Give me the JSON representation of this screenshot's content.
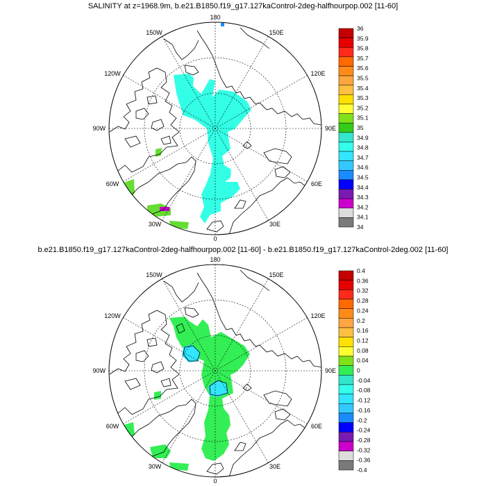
{
  "panels": [
    {
      "title": "SALINITY at z=1968.9m, b.e21.B1850.f19_g17.127kaControl-2deg-halfhourpop.002 [11-60]",
      "longitude_labels": [
        "180",
        "150W",
        "150E",
        "120W",
        "120E",
        "90W",
        "90E",
        "60W",
        "60E",
        "30W",
        "30E",
        "0"
      ],
      "colorbar": {
        "labels": [
          "36",
          "35.9",
          "35.8",
          "35.7",
          "35.6",
          "35.5",
          "35.4",
          "35.3",
          "35.2",
          "35.1",
          "35",
          "34.9",
          "34.8",
          "34.7",
          "34.6",
          "34.5",
          "34.4",
          "34.3",
          "34.2",
          "34.1",
          "34"
        ],
        "colors": [
          "#c40000",
          "#e60000",
          "#ff2a1a",
          "#ff6a00",
          "#ff8c1a",
          "#ffa640",
          "#ffbf40",
          "#ffe000",
          "#ffff33",
          "#80e01a",
          "#33cc1a",
          "#33e6cc",
          "#33ffee",
          "#33e6ff",
          "#33c8ff",
          "#1a8cff",
          "#0000ff",
          "#7a1ab2",
          "#cc00cc",
          "#dcdcdc",
          "#7a7a7a"
        ]
      }
    },
    {
      "title": "b.e21.B1850.f19_g17.127kaControl-2deg-halfhourpop.002 [11-60] - b.e21.B1850.f19_g17.127kaControl-2deg.002 [11-60]",
      "longitude_labels": [
        "180",
        "150W",
        "150E",
        "120W",
        "120E",
        "90W",
        "90E",
        "60W",
        "60E",
        "30W",
        "30E",
        "0"
      ],
      "colorbar": {
        "labels": [
          "0.4",
          "0.36",
          "0.32",
          "0.28",
          "0.24",
          "0.2",
          "0.16",
          "0.12",
          "0.08",
          "0.04",
          "0",
          "-0.04",
          "-0.08",
          "-0.12",
          "-0.16",
          "-0.2",
          "-0.24",
          "-0.28",
          "-0.32",
          "-0.36",
          "-0.4"
        ],
        "colors": [
          "#c40000",
          "#e60000",
          "#ff2a1a",
          "#ff6a00",
          "#ff8c1a",
          "#ffa640",
          "#ffbf40",
          "#ffe000",
          "#ffff33",
          "#80e01a",
          "#33ee55",
          "#33e6cc",
          "#33ffee",
          "#33e6ff",
          "#33c8ff",
          "#1a8cff",
          "#0000ff",
          "#7a1ab2",
          "#cc00cc",
          "#dcdcdc",
          "#7a7a7a"
        ]
      }
    }
  ]
}
